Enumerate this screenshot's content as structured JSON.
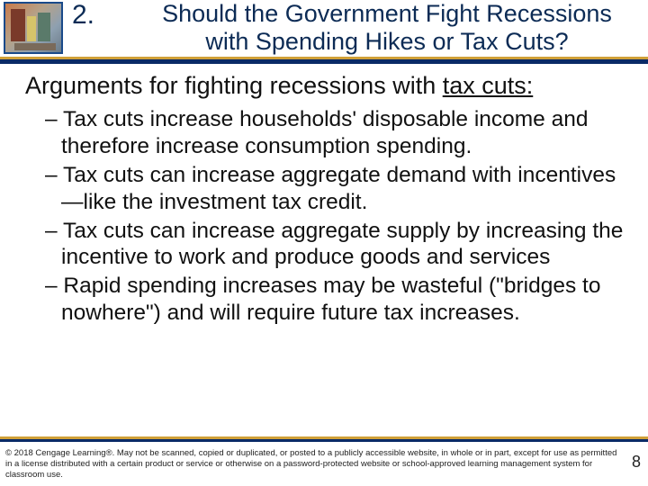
{
  "colors": {
    "title_color": "#0c2b55",
    "rule_gold": "#d0a038",
    "rule_blue": "#0a2a66",
    "text_color": "#111111",
    "background": "#ffffff"
  },
  "header": {
    "number": "2.",
    "title_line1": "Should the Government Fight Recessions",
    "title_line2": "with Spending Hikes or Tax Cuts?"
  },
  "subhead": {
    "prefix": "Arguments for fighting recessions with ",
    "underlined": "tax cuts:",
    "suffix": ""
  },
  "bullets": [
    "– Tax cuts increase households' disposable income and therefore increase consumption spending.",
    "– Tax cuts can increase aggregate demand with incentives—like the investment tax credit.",
    "– Tax cuts can increase aggregate supply by increasing the incentive to work and produce goods and services",
    "– Rapid spending increases may be wasteful (\"bridges to nowhere\") and will require future tax increases."
  ],
  "footer": {
    "text": "© 2018 Cengage Learning®. May not be scanned, copied or duplicated, or posted to a publicly accessible website, in whole or in part, except for use as permitted in a license distributed with a certain product or service or otherwise on a password-protected website or school-approved learning management system for classroom use.",
    "page_number": "8"
  }
}
